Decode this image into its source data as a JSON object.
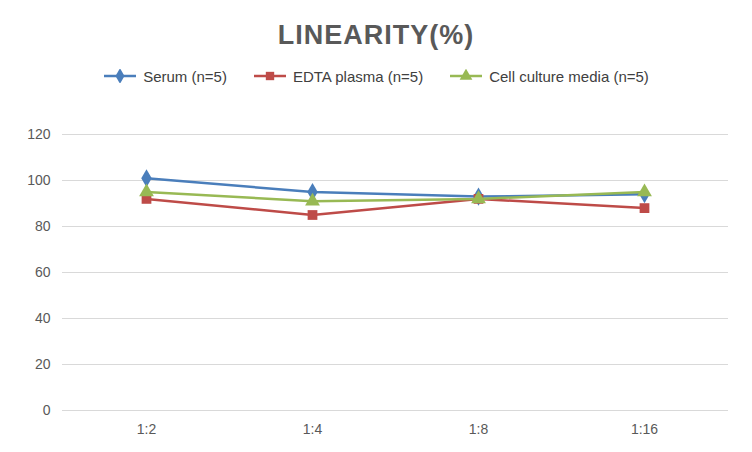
{
  "chart_data": {
    "type": "line",
    "title": "LINEARITY(%)",
    "categories": [
      "1:2",
      "1:4",
      "1:8",
      "1:16"
    ],
    "series": [
      {
        "name": "Serum (n=5)",
        "color": "#4a7ebb",
        "marker": "diamond",
        "values": [
          101,
          95,
          93,
          94
        ]
      },
      {
        "name": "EDTA plasma (n=5)",
        "color": "#be4b48",
        "marker": "square",
        "values": [
          92,
          85,
          92,
          88
        ]
      },
      {
        "name": "Cell culture media (n=5)",
        "color": "#98b954",
        "marker": "triangle",
        "values": [
          95,
          91,
          92,
          95
        ]
      }
    ],
    "ylim": [
      0,
      120
    ],
    "yticks": [
      0,
      20,
      40,
      60,
      80,
      100,
      120
    ],
    "grid": true,
    "legend": "top"
  }
}
